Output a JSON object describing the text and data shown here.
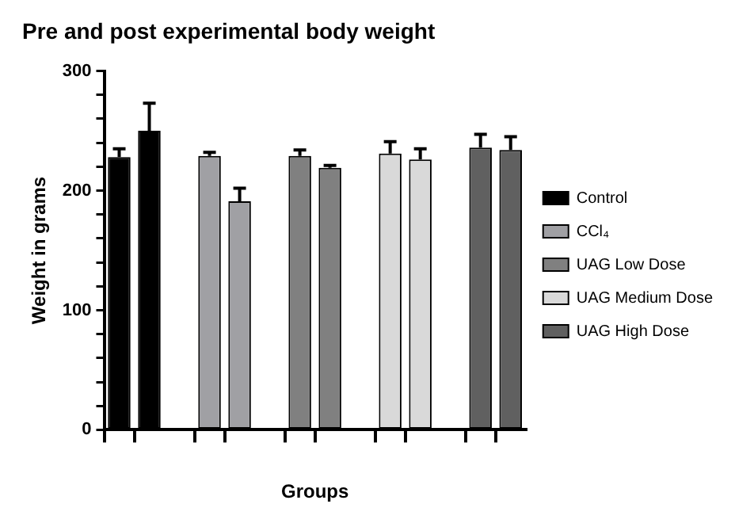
{
  "chart_data": {
    "type": "bar",
    "title": "Pre and post experimental body weight",
    "xlabel": "Groups",
    "ylabel": "Weight in grams",
    "categories": [
      null,
      null,
      null,
      null,
      null,
      null,
      null,
      null,
      null,
      null,
      null,
      null,
      null,
      null
    ],
    "series": [
      {
        "name": "Control",
        "color": "#000000",
        "values": [
          228,
          250,
          null,
          null,
          null,
          null,
          null,
          null,
          null,
          null,
          null,
          null,
          null,
          null
        ],
        "errors": [
          7,
          23,
          null,
          null,
          null,
          null,
          null,
          null,
          null,
          null,
          null,
          null,
          null,
          null
        ]
      },
      {
        "name": "CCl₄",
        "color": "#a0a0a4",
        "values": [
          null,
          null,
          null,
          229,
          191,
          null,
          null,
          null,
          null,
          null,
          null,
          null,
          null,
          null
        ],
        "errors": [
          null,
          null,
          null,
          3,
          11,
          null,
          null,
          null,
          null,
          null,
          null,
          null,
          null,
          null
        ]
      },
      {
        "name": "UAG Low Dose",
        "color": "#808080",
        "values": [
          null,
          null,
          null,
          null,
          null,
          null,
          229,
          219,
          null,
          null,
          null,
          null,
          null,
          null
        ],
        "errors": [
          null,
          null,
          null,
          null,
          null,
          null,
          5,
          2,
          null,
          null,
          null,
          null,
          null,
          null
        ]
      },
      {
        "name": "UAG Medium Dose",
        "color": "#d9d9d9",
        "values": [
          null,
          null,
          null,
          null,
          null,
          null,
          null,
          null,
          null,
          231,
          226,
          null,
          null,
          null
        ],
        "errors": [
          null,
          null,
          null,
          null,
          null,
          null,
          null,
          null,
          null,
          10,
          9,
          null,
          null,
          null
        ]
      },
      {
        "name": "UAG High Dose",
        "color": "#606060",
        "values": [
          null,
          null,
          null,
          null,
          null,
          null,
          null,
          null,
          null,
          null,
          null,
          null,
          236,
          234
        ],
        "errors": [
          null,
          null,
          null,
          null,
          null,
          null,
          null,
          null,
          null,
          null,
          null,
          null,
          11,
          11
        ]
      }
    ],
    "ylim": [
      0,
      300
    ],
    "yticks": [
      0,
      {
        "value": 20,
        "label": null
      },
      {
        "value": 40,
        "label": null
      },
      {
        "value": 60,
        "label": null
      },
      {
        "value": 80,
        "label": null
      },
      100,
      {
        "value": 120,
        "label": null
      },
      {
        "value": 140,
        "label": null
      },
      {
        "value": 160,
        "label": null
      },
      {
        "value": 180,
        "label": null
      },
      200,
      {
        "value": 220,
        "label": null
      },
      {
        "value": 240,
        "label": null
      },
      {
        "value": 260,
        "label": null
      },
      {
        "value": 280,
        "label": null
      },
      300
    ],
    "grid": false,
    "legend": "right"
  }
}
